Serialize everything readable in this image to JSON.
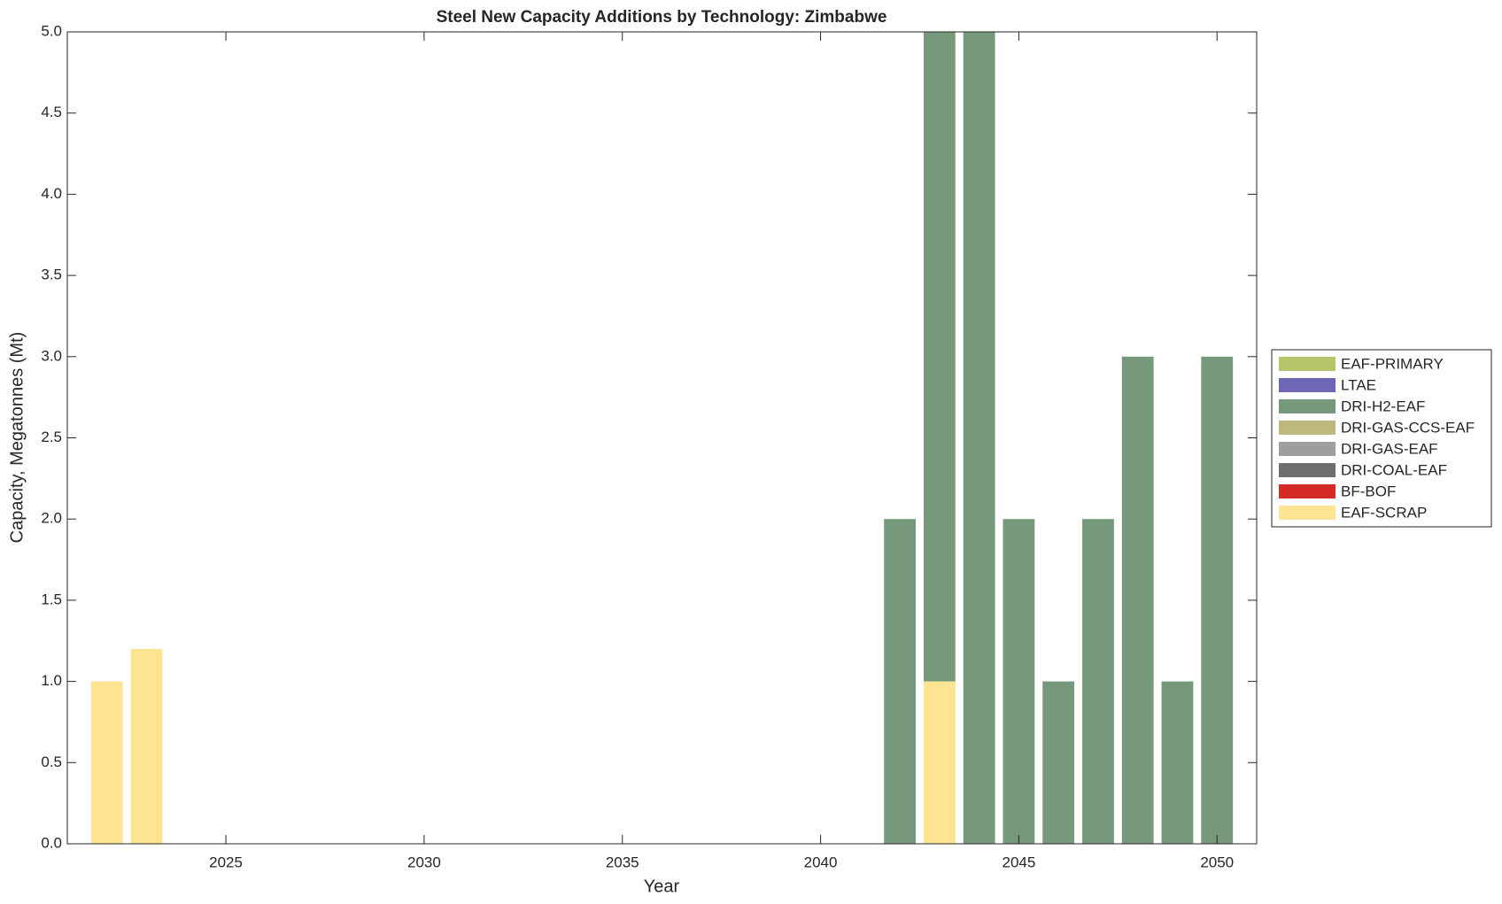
{
  "chart_data": {
    "type": "bar",
    "stacked": true,
    "title": "Steel New Capacity Additions by Technology: Zimbabwe",
    "x_label": "Year",
    "y_label": "Capacity, Megatonnes (Mt)",
    "x": [
      2022,
      2023,
      2024,
      2025,
      2026,
      2027,
      2028,
      2029,
      2030,
      2031,
      2032,
      2033,
      2034,
      2035,
      2036,
      2037,
      2038,
      2039,
      2040,
      2041,
      2042,
      2043,
      2044,
      2045,
      2046,
      2047,
      2048,
      2049,
      2050
    ],
    "series": [
      {
        "name": "EAF-PRIMARY",
        "color": "#b8c46a",
        "values": [
          0,
          0,
          0,
          0,
          0,
          0,
          0,
          0,
          0,
          0,
          0,
          0,
          0,
          0,
          0,
          0,
          0,
          0,
          0,
          0,
          0,
          0,
          0,
          0,
          0,
          0,
          0,
          0,
          0
        ]
      },
      {
        "name": "LTAE",
        "color": "#6e67b5",
        "values": [
          0,
          0,
          0,
          0,
          0,
          0,
          0,
          0,
          0,
          0,
          0,
          0,
          0,
          0,
          0,
          0,
          0,
          0,
          0,
          0,
          0,
          0,
          0,
          0,
          0,
          0,
          0,
          0,
          0
        ]
      },
      {
        "name": "DRI-H2-EAF",
        "color": "#76987b",
        "values": [
          0,
          0,
          0,
          0,
          0,
          0,
          0,
          0,
          0,
          0,
          0,
          0,
          0,
          0,
          0,
          0,
          0,
          0,
          0,
          0,
          2,
          4,
          5,
          2,
          1,
          2,
          3,
          1,
          3
        ]
      },
      {
        "name": "DRI-GAS-CCS-EAF",
        "color": "#bfb87e",
        "values": [
          0,
          0,
          0,
          0,
          0,
          0,
          0,
          0,
          0,
          0,
          0,
          0,
          0,
          0,
          0,
          0,
          0,
          0,
          0,
          0,
          0,
          0,
          0,
          0,
          0,
          0,
          0,
          0,
          0
        ]
      },
      {
        "name": "DRI-GAS-EAF",
        "color": "#9e9e9e",
        "values": [
          0,
          0,
          0,
          0,
          0,
          0,
          0,
          0,
          0,
          0,
          0,
          0,
          0,
          0,
          0,
          0,
          0,
          0,
          0,
          0,
          0,
          0,
          0,
          0,
          0,
          0,
          0,
          0,
          0
        ]
      },
      {
        "name": "DRI-COAL-EAF",
        "color": "#6e6e6e",
        "values": [
          0,
          0,
          0,
          0,
          0,
          0,
          0,
          0,
          0,
          0,
          0,
          0,
          0,
          0,
          0,
          0,
          0,
          0,
          0,
          0,
          0,
          0,
          0,
          0,
          0,
          0,
          0,
          0,
          0
        ]
      },
      {
        "name": "BF-BOF",
        "color": "#d42b27",
        "values": [
          0,
          0,
          0,
          0,
          0,
          0,
          0,
          0,
          0,
          0,
          0,
          0,
          0,
          0,
          0,
          0,
          0,
          0,
          0,
          0,
          0,
          0,
          0,
          0,
          0,
          0,
          0,
          0,
          0
        ]
      },
      {
        "name": "EAF-SCRAP",
        "color": "#fee492",
        "values": [
          1,
          1.2,
          0,
          0,
          0,
          0,
          0,
          0,
          0,
          0,
          0,
          0,
          0,
          0,
          0,
          0,
          0,
          0,
          0,
          0,
          0,
          1,
          0,
          0,
          0,
          0,
          0,
          0,
          0
        ]
      }
    ],
    "xlim": [
      2021,
      2051
    ],
    "xticks": [
      2025,
      2030,
      2035,
      2040,
      2045,
      2050
    ],
    "ylim": [
      0,
      5
    ],
    "yticks": [
      {
        "value": 0,
        "label": "0.0"
      },
      {
        "value": 0.5,
        "label": "0.5"
      },
      {
        "value": 1,
        "label": "1.0"
      },
      {
        "value": 1.5,
        "label": "1.5"
      },
      {
        "value": 2,
        "label": "2.0"
      },
      {
        "value": 2.5,
        "label": "2.5"
      },
      {
        "value": 3,
        "label": "3.0"
      },
      {
        "value": 3.5,
        "label": "3.5"
      },
      {
        "value": 4,
        "label": "4.0"
      },
      {
        "value": 4.5,
        "label": "4.5"
      },
      {
        "value": 5,
        "label": "5.0"
      }
    ],
    "legend": "outside-right"
  }
}
